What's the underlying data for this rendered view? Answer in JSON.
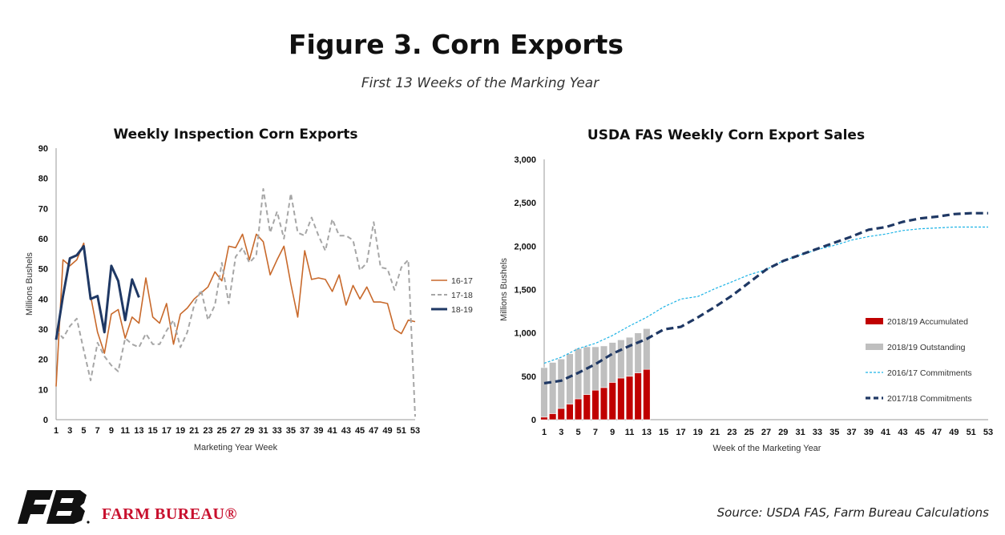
{
  "page": {
    "title": "Figure 3. Corn Exports",
    "subtitle": "First 13 Weeks of the Marking Year",
    "org_name": "FARM BUREAU®",
    "source": "Source: USDA FAS, Farm Bureau Calculations"
  },
  "chart_data": [
    {
      "type": "line",
      "title": "Weekly Inspection Corn Exports",
      "xlabel": "Marketing Year Week",
      "ylabel": "Millions Bushels",
      "ylim": [
        0,
        90
      ],
      "yticks": [
        0,
        10,
        20,
        30,
        40,
        50,
        60,
        70,
        80,
        90
      ],
      "xlim": [
        1,
        53
      ],
      "xticks": [
        "1",
        "3",
        "5",
        "7",
        "9",
        "11",
        "13",
        "15",
        "17",
        "19",
        "21",
        "23",
        "25",
        "27",
        "29",
        "31",
        "33",
        "35",
        "37",
        "39",
        "41",
        "43",
        "45",
        "47",
        "49",
        "51",
        "53"
      ],
      "legend_position": "right",
      "series": [
        {
          "name": "16-17",
          "color": "#c8692b",
          "style": "solid",
          "x": [
            1,
            2,
            3,
            4,
            5,
            6,
            7,
            8,
            9,
            10,
            11,
            12,
            13,
            14,
            15,
            16,
            17,
            18,
            19,
            20,
            21,
            22,
            23,
            24,
            25,
            26,
            27,
            28,
            29,
            30,
            31,
            32,
            33,
            34,
            35,
            36,
            37,
            38,
            39,
            40,
            41,
            42,
            43,
            44,
            45,
            46,
            47,
            48,
            49,
            50,
            51,
            52,
            53
          ],
          "values": [
            11,
            53,
            51,
            53,
            58.5,
            41,
            29,
            22,
            35,
            36.5,
            27,
            34,
            32,
            47,
            34,
            32,
            38.5,
            25,
            35,
            37,
            40,
            42,
            44,
            49,
            46,
            57.5,
            57,
            61.5,
            53,
            61.5,
            59,
            48,
            53,
            57.5,
            45,
            34,
            56,
            46.5,
            47,
            46.5,
            42.5,
            48,
            38,
            44.5,
            40,
            44,
            39,
            39,
            38.5,
            30,
            28.5,
            33,
            32.5
          ]
        },
        {
          "name": "17-18",
          "color": "#a6a6a6",
          "style": "dashed",
          "x": [
            1,
            2,
            3,
            4,
            5,
            6,
            7,
            8,
            9,
            10,
            11,
            12,
            13,
            14,
            15,
            16,
            17,
            18,
            19,
            20,
            21,
            22,
            23,
            24,
            25,
            26,
            27,
            28,
            29,
            30,
            31,
            32,
            33,
            34,
            35,
            36,
            37,
            38,
            39,
            40,
            41,
            42,
            43,
            44,
            45,
            46,
            47,
            48,
            49,
            50,
            51,
            52,
            53
          ],
          "values": [
            30,
            27,
            31,
            33.5,
            23,
            13,
            25.5,
            21,
            18,
            16,
            27,
            25,
            24,
            28.5,
            25,
            25,
            29.5,
            33,
            24,
            29,
            38,
            43,
            33,
            38,
            52,
            38.5,
            54,
            57,
            52,
            54.5,
            76.5,
            62,
            69,
            60,
            75,
            62,
            61,
            67,
            61,
            56,
            66.5,
            61,
            61,
            59.5,
            49.5,
            52,
            65.5,
            50.5,
            50,
            43,
            50.5,
            53,
            1
          ]
        },
        {
          "name": "18-19",
          "color": "#1f3864",
          "style": "solid-thick",
          "x": [
            1,
            2,
            3,
            4,
            5,
            6,
            7,
            8,
            9,
            10,
            11,
            12,
            13
          ],
          "values": [
            26.5,
            41,
            53.5,
            54.5,
            57.5,
            40,
            41,
            29,
            51,
            46,
            33,
            46.5,
            40.5
          ]
        }
      ]
    },
    {
      "type": "bar+line",
      "title": "USDA FAS Weekly Corn Export Sales",
      "xlabel": "Week of the Marketing Year",
      "ylabel": "Millions Bushels",
      "ylim": [
        0,
        3000
      ],
      "yticks": [
        "0",
        "500",
        "1,000",
        "1,500",
        "2,000",
        "2,500",
        "3,000"
      ],
      "xlim": [
        1,
        53
      ],
      "xticks": [
        "1",
        "3",
        "5",
        "7",
        "9",
        "11",
        "13",
        "15",
        "17",
        "19",
        "21",
        "23",
        "25",
        "27",
        "29",
        "31",
        "33",
        "35",
        "37",
        "39",
        "41",
        "43",
        "45",
        "47",
        "49",
        "51",
        "53"
      ],
      "legend_position": "right",
      "bar_stack": {
        "x": [
          1,
          2,
          3,
          4,
          5,
          6,
          7,
          8,
          9,
          10,
          11,
          12,
          13
        ],
        "series": [
          {
            "name": "2018/19 Accumulated",
            "color": "#c00000",
            "values": [
              30,
              70,
              130,
              180,
              240,
              290,
              340,
              370,
              430,
              480,
              500,
              540,
              580
            ]
          },
          {
            "name": "2018/19 Outstanding",
            "color": "#bfbfbf",
            "values": [
              570,
              590,
              570,
              580,
              580,
              550,
              500,
              480,
              460,
              440,
              450,
              460,
              470
            ]
          }
        ]
      },
      "series": [
        {
          "name": "2016/17 Commitments",
          "color": "#1cb3e6",
          "style": "dashed-thin",
          "x": [
            1,
            3,
            5,
            7,
            9,
            11,
            13,
            15,
            17,
            19,
            21,
            23,
            25,
            27,
            29,
            31,
            33,
            35,
            37,
            39,
            41,
            43,
            45,
            47,
            49,
            51,
            53
          ],
          "values": [
            650,
            720,
            820,
            880,
            970,
            1080,
            1180,
            1300,
            1390,
            1420,
            1510,
            1590,
            1670,
            1730,
            1830,
            1900,
            1960,
            2010,
            2070,
            2110,
            2140,
            2180,
            2200,
            2210,
            2220,
            2220,
            2220
          ]
        },
        {
          "name": "2017/18 Commitments",
          "color": "#1f3864",
          "style": "dashed-thick",
          "x": [
            1,
            3,
            5,
            7,
            9,
            11,
            13,
            15,
            17,
            19,
            21,
            23,
            25,
            27,
            29,
            31,
            33,
            35,
            37,
            39,
            41,
            43,
            45,
            47,
            49,
            51,
            53
          ],
          "values": [
            420,
            450,
            540,
            640,
            760,
            850,
            930,
            1040,
            1070,
            1180,
            1300,
            1430,
            1580,
            1730,
            1830,
            1900,
            1970,
            2040,
            2110,
            2190,
            2220,
            2280,
            2320,
            2340,
            2370,
            2380,
            2380
          ]
        }
      ]
    }
  ]
}
